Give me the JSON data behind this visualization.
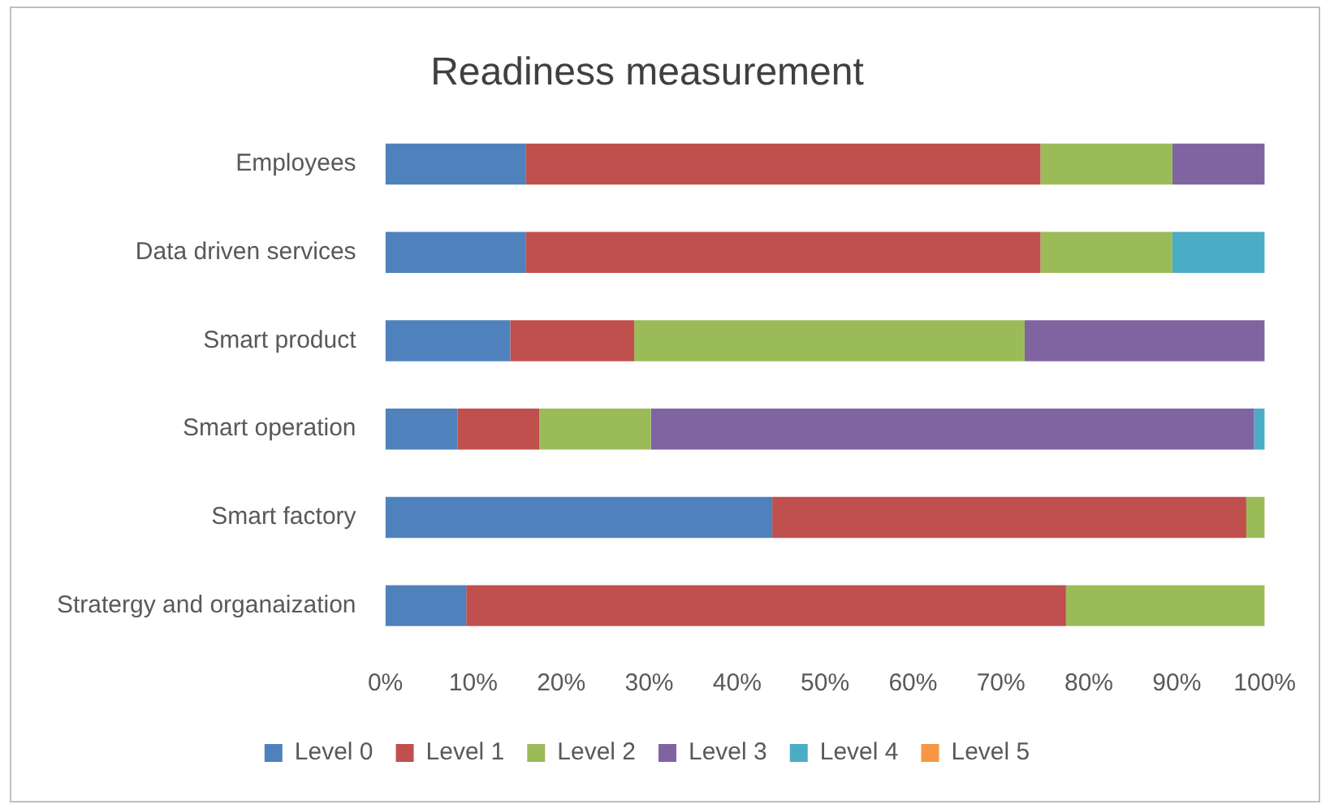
{
  "chart_data": {
    "type": "bar",
    "orientation": "horizontal",
    "stacked": true,
    "title": "Readiness measurement",
    "categories": [
      "Employees",
      "Data driven services",
      "Smart product",
      "Smart operation",
      "Smart factory",
      "Stratergy and organaization"
    ],
    "series": [
      {
        "name": "Level 0",
        "color": "#4f81bd",
        "values": [
          16,
          16,
          14.2,
          8.2,
          44,
          9.2
        ]
      },
      {
        "name": "Level 1",
        "color": "#c0504d",
        "values": [
          58.5,
          58.5,
          14.1,
          9.3,
          53.9,
          68.2
        ]
      },
      {
        "name": "Level 2",
        "color": "#9bbb59",
        "values": [
          15,
          15,
          44.4,
          12.7,
          2.1,
          22.6
        ]
      },
      {
        "name": "Level 3",
        "color": "#8064a2",
        "values": [
          10.5,
          0,
          27.3,
          68.6,
          0,
          0
        ]
      },
      {
        "name": "Level 4",
        "color": "#4bacc6",
        "values": [
          0,
          10.5,
          0,
          1.2,
          0,
          0
        ]
      },
      {
        "name": "Level 5",
        "color": "#f79646",
        "values": [
          0,
          0,
          0,
          0,
          0,
          0
        ]
      }
    ],
    "xlim": [
      0,
      100
    ],
    "xticks": [
      {
        "value": 0,
        "label": "0%"
      },
      {
        "value": 10,
        "label": "10%"
      },
      {
        "value": 20,
        "label": "20%"
      },
      {
        "value": 30,
        "label": "30%"
      },
      {
        "value": 40,
        "label": "40%"
      },
      {
        "value": 50,
        "label": "50%"
      },
      {
        "value": 60,
        "label": "60%"
      },
      {
        "value": 70,
        "label": "70%"
      },
      {
        "value": 80,
        "label": "80%"
      },
      {
        "value": 90,
        "label": "90%"
      },
      {
        "value": 100,
        "label": "100%"
      }
    ],
    "grid": false,
    "legend": "bottom"
  }
}
